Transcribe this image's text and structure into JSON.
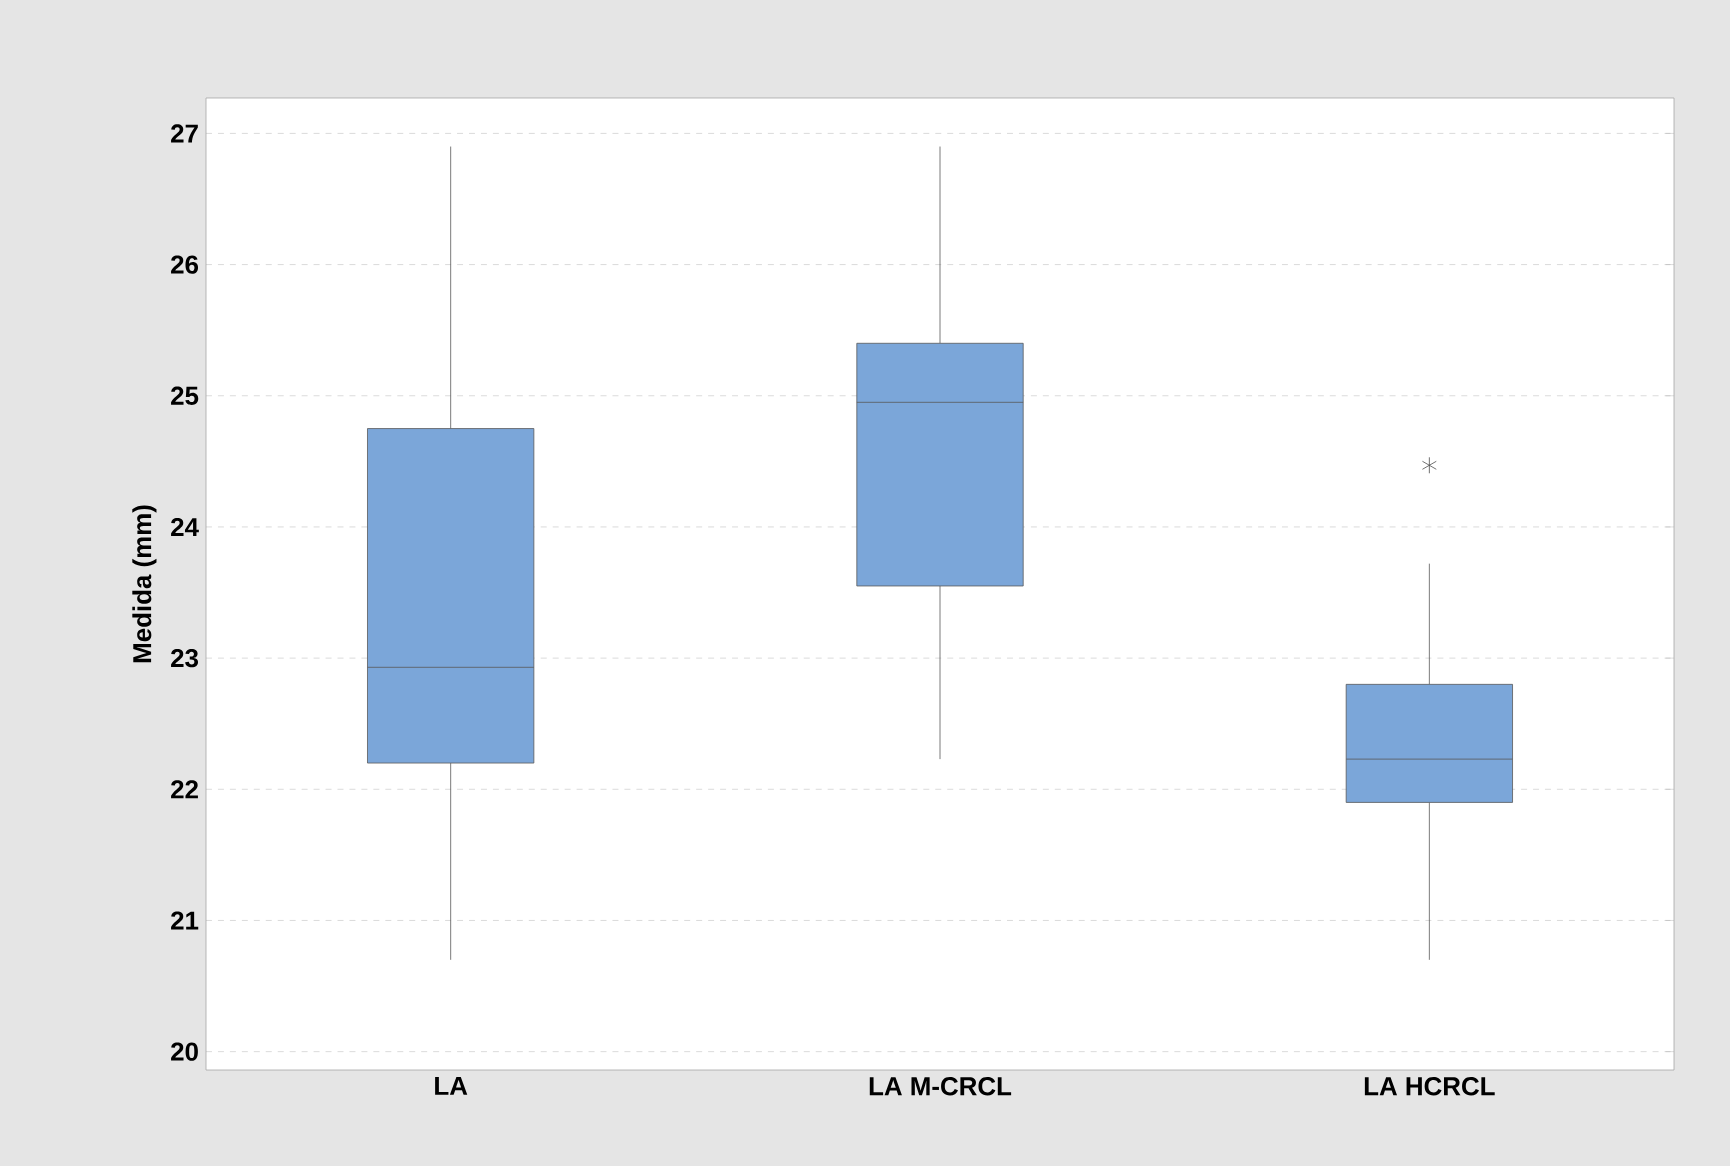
{
  "chart_data": {
    "type": "box",
    "ylabel": "Medida (mm)",
    "categories": [
      "LA",
      "LA M-CRCL",
      "LA HCRCL"
    ],
    "color": "#7ba6d9",
    "boxes": [
      {
        "low": 20.7,
        "q1": 22.2,
        "median": 22.93,
        "q3": 24.75,
        "high": 26.9
      },
      {
        "low": 22.23,
        "q1": 23.55,
        "median": 24.95,
        "q3": 25.4,
        "high": 26.9
      },
      {
        "low": 20.7,
        "q1": 21.9,
        "median": 22.23,
        "q3": 22.8,
        "high": 23.72,
        "outliers": [
          24.47
        ]
      }
    ],
    "ylim": [
      19.86,
      27.27
    ],
    "yticks": [
      20,
      21,
      22,
      23,
      24,
      25,
      26,
      27
    ],
    "grid": "y"
  }
}
